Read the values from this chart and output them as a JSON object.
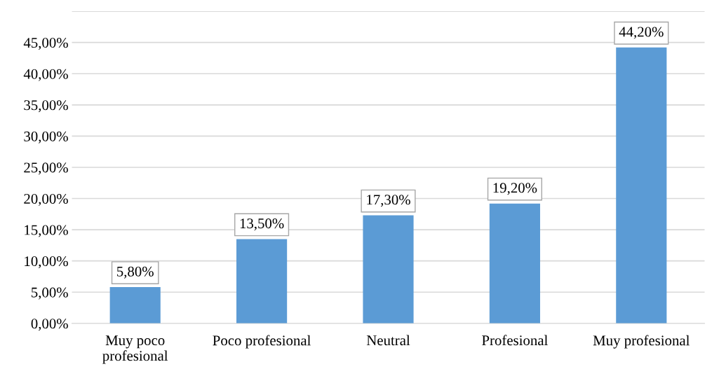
{
  "chart_data": {
    "type": "bar",
    "categories": [
      "Muy poco\nprofesional",
      "Poco profesional",
      "Neutral",
      "Profesional",
      "Muy profesional"
    ],
    "values": [
      5.8,
      13.5,
      17.3,
      19.2,
      44.2
    ],
    "value_labels": [
      "5,80%",
      "13,50%",
      "17,30%",
      "19,20%",
      "44,20%"
    ],
    "color": "#5b9bd5",
    "ylim": [
      0,
      50
    ],
    "yticks": [
      {
        "value": 0,
        "label": "0,00%"
      },
      {
        "value": 5,
        "label": "5,00%"
      },
      {
        "value": 10,
        "label": "10,00%"
      },
      {
        "value": 15,
        "label": "15,00%"
      },
      {
        "value": 20,
        "label": "20,00%"
      },
      {
        "value": 25,
        "label": "25,00%"
      },
      {
        "value": 30,
        "label": "30,00%"
      },
      {
        "value": 35,
        "label": "35,00%"
      },
      {
        "value": 40,
        "label": "40,00%"
      },
      {
        "value": 45,
        "label": "45,00%"
      },
      {
        "value": 50,
        "label": null
      }
    ],
    "grid": "y"
  }
}
